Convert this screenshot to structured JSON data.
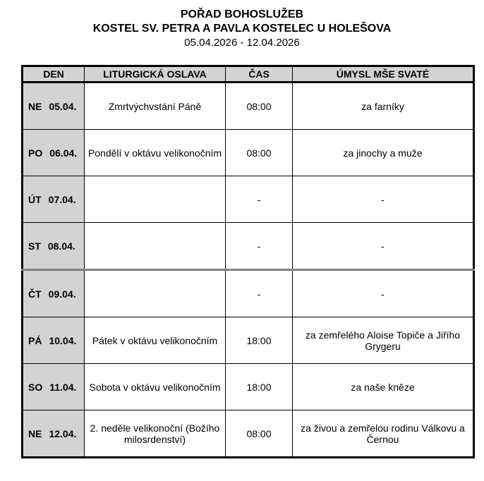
{
  "heading": {
    "title": "POŘAD BOHOSLUŽEB",
    "subtitle": "KOSTEL SV. PETRA A PAVLA KOSTELEC U HOLEŠOVA",
    "date_range": "05.04.2026 - 12.04.2026"
  },
  "table": {
    "columns": [
      "DEN",
      "LITURGICKÁ OSLAVA",
      "ČAS",
      "ÚMYSL MŠE SVATÉ"
    ],
    "rows": [
      {
        "day": "NE",
        "date": "05.04.",
        "celebration": "Zmrtvýchvstání Páně",
        "time": "08:00",
        "intention": "za farníky"
      },
      {
        "day": "PO",
        "date": "06.04.",
        "celebration": "Pondělí v oktávu velikonočním",
        "time": "08:00",
        "intention": "za jinochy a muže"
      },
      {
        "day": "ÚT",
        "date": "07.04.",
        "celebration": "",
        "time": "-",
        "intention": "-"
      },
      {
        "day": "ST",
        "date": "08.04.",
        "celebration": "",
        "time": "-",
        "intention": "-"
      },
      {
        "day": "ČT",
        "date": "09.04.",
        "celebration": "",
        "time": "-",
        "intention": "-"
      },
      {
        "day": "PÁ",
        "date": "10.04.",
        "celebration": "Pátek v oktávu velikonočním",
        "time": "18:00",
        "intention": "za zemřelého Aloise Topiče a Jiřího Grygeru"
      },
      {
        "day": "SO",
        "date": "11.04.",
        "celebration": "Sobota v oktávu velikonočním",
        "time": "18:00",
        "intention": "za naše kněze"
      },
      {
        "day": "NE",
        "date": "12.04.",
        "celebration": "2. neděle velikonoční (Božího milosrdenství)",
        "time": "08:00",
        "intention": "za živou a zemřelou rodinu Válkovu a Černou"
      }
    ]
  },
  "colors": {
    "header_bg": "#d3d3d3",
    "border": "#000000",
    "page_break_line": "#808080"
  }
}
